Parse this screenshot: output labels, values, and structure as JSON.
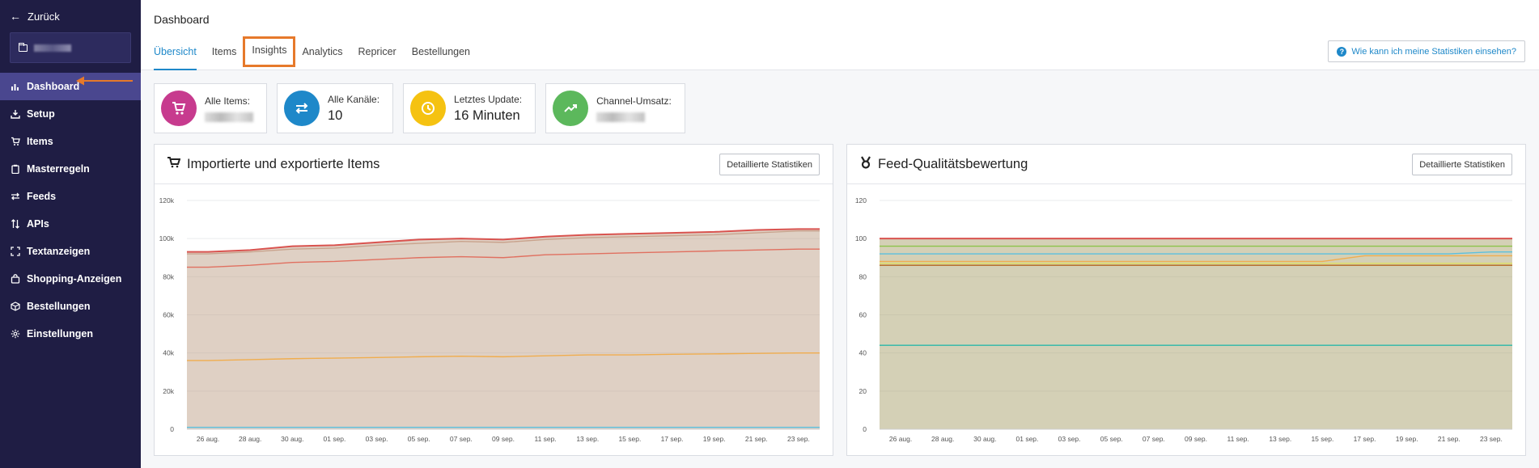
{
  "sidebar": {
    "back_label": "Zurück",
    "items": [
      {
        "label": "Dashboard",
        "icon": "bar-chart-icon",
        "active": true
      },
      {
        "label": "Setup",
        "icon": "download-icon"
      },
      {
        "label": "Items",
        "icon": "cart-icon"
      },
      {
        "label": "Masterregeln",
        "icon": "clipboard-icon"
      },
      {
        "label": "Feeds",
        "icon": "swap-icon"
      },
      {
        "label": "APIs",
        "icon": "sort-arrows-icon"
      },
      {
        "label": "Textanzeigen",
        "icon": "frame-icon"
      },
      {
        "label": "Shopping-Anzeigen",
        "icon": "shopping-bag-icon"
      },
      {
        "label": "Bestellungen",
        "icon": "box-icon"
      },
      {
        "label": "Einstellungen",
        "icon": "gear-icon"
      }
    ]
  },
  "header": {
    "title": "Dashboard",
    "tabs": [
      {
        "label": "Übersicht",
        "active": true
      },
      {
        "label": "Items"
      },
      {
        "label": "Insights",
        "highlighted": true
      },
      {
        "label": "Analytics"
      },
      {
        "label": "Repricer"
      },
      {
        "label": "Bestellungen"
      }
    ],
    "help_label": "Wie kann ich meine Statistiken einsehen?"
  },
  "kpis": [
    {
      "label": "Alle Items:",
      "value": "",
      "color": "#c73b8e",
      "icon": "cart-icon"
    },
    {
      "label": "Alle Kanäle:",
      "value": "10",
      "color": "#1e88c9",
      "icon": "swap-icon"
    },
    {
      "label": "Letztes Update:",
      "value": "16 Minuten",
      "color": "#f5c211",
      "icon": "clock-icon"
    },
    {
      "label": "Channel-Umsatz:",
      "value": "",
      "color": "#5cb85c",
      "icon": "trend-icon"
    }
  ],
  "panels": [
    {
      "title": "Importierte und exportierte Items",
      "button": "Detaillierte Statistiken",
      "icon": "cart-icon"
    },
    {
      "title": "Feed-Qualitätsbewertung",
      "button": "Detaillierte Statistiken",
      "icon": "medal-icon"
    }
  ],
  "chart_data": [
    {
      "type": "area",
      "x": [
        "26 aug.",
        "28 aug.",
        "30 aug.",
        "01 sep.",
        "03 sep.",
        "05 sep.",
        "07 sep.",
        "09 sep.",
        "11 sep.",
        "13 sep.",
        "15 sep.",
        "17 sep.",
        "19 sep.",
        "21 sep.",
        "23 sep."
      ],
      "ylim": [
        0,
        120000
      ],
      "yticks": [
        "0",
        "20k",
        "40k",
        "60k",
        "80k",
        "100k",
        "120k"
      ],
      "series": [
        {
          "values": [
            93000,
            94000,
            96000,
            96500,
            98000,
            99500,
            100000,
            99500,
            101000,
            102000,
            102500,
            103000,
            103500,
            104500,
            105000
          ],
          "color": "#d9534f"
        },
        {
          "values": [
            92000,
            93000,
            94500,
            95000,
            96500,
            97500,
            98500,
            98000,
            99500,
            100500,
            101000,
            101500,
            102000,
            103000,
            104000
          ],
          "color": "#c9a38d"
        },
        {
          "values": [
            85000,
            86000,
            87500,
            88000,
            89000,
            90000,
            90500,
            90000,
            91500,
            92000,
            92500,
            93000,
            93500,
            94000,
            94500
          ],
          "color": "#e07060"
        },
        {
          "values": [
            36000,
            36500,
            37000,
            37300,
            37600,
            38000,
            38300,
            38000,
            38500,
            39000,
            39000,
            39300,
            39500,
            39800,
            40000
          ],
          "color": "#f0ad4e"
        },
        {
          "values": [
            1000,
            1000,
            1000,
            1000,
            1000,
            1000,
            1000,
            1000,
            1000,
            1000,
            1000,
            1000,
            1000,
            1000,
            1000
          ],
          "color": "#5bc0de"
        }
      ]
    },
    {
      "type": "area",
      "x": [
        "26 aug.",
        "28 aug.",
        "30 aug.",
        "01 sep.",
        "03 sep.",
        "05 sep.",
        "07 sep.",
        "09 sep.",
        "11 sep.",
        "13 sep.",
        "15 sep.",
        "17 sep.",
        "19 sep.",
        "21 sep.",
        "23 sep."
      ],
      "ylim": [
        0,
        120
      ],
      "yticks": [
        "0",
        "20",
        "40",
        "60",
        "80",
        "100",
        "120"
      ],
      "series": [
        {
          "values": [
            100,
            100,
            100,
            100,
            100,
            100,
            100,
            100,
            100,
            100,
            100,
            100,
            100,
            100,
            100
          ],
          "color": "#d9534f"
        },
        {
          "values": [
            96,
            96,
            96,
            96,
            96,
            96,
            96,
            96,
            96,
            96,
            96,
            96,
            96,
            96,
            96
          ],
          "color": "#8bc34a"
        },
        {
          "values": [
            92,
            92,
            92,
            92,
            92,
            92,
            92,
            92,
            92,
            92,
            92,
            92,
            92,
            92,
            93
          ],
          "color": "#5bc0de"
        },
        {
          "values": [
            88,
            88,
            88,
            88,
            88,
            88,
            88,
            88,
            88,
            88,
            88,
            91,
            91,
            91,
            91
          ],
          "color": "#f0ad4e"
        },
        {
          "values": [
            87,
            87,
            87,
            87,
            87,
            87,
            87,
            87,
            87,
            87,
            87,
            87,
            87,
            87,
            87
          ],
          "color": "#e0e060"
        },
        {
          "values": [
            86,
            86,
            86,
            86,
            86,
            86,
            86,
            86,
            86,
            86,
            86,
            86,
            86,
            86,
            86
          ],
          "color": "#b5651d"
        },
        {
          "values": [
            44,
            44,
            44,
            44,
            44,
            44,
            44,
            44,
            44,
            44,
            44,
            44,
            44,
            44,
            44
          ],
          "color": "#2ab7a9"
        }
      ]
    }
  ]
}
